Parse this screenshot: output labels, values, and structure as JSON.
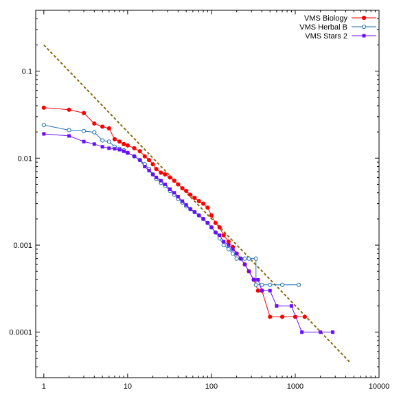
{
  "chart_data": {
    "type": "line",
    "x_scale": "log",
    "y_scale": "log",
    "xlim": [
      0.8,
      10000
    ],
    "ylim": [
      3e-05,
      0.5
    ],
    "x_ticks": [
      {
        "value": 1,
        "label": "1"
      },
      {
        "value": 10,
        "label": "10"
      },
      {
        "value": 100,
        "label": "100"
      },
      {
        "value": 1000,
        "label": "1000"
      },
      {
        "value": 10000,
        "label": "10000"
      }
    ],
    "y_ticks": [
      {
        "value": 0.1,
        "label": "0.1"
      },
      {
        "value": 0.01,
        "label": "0.01"
      },
      {
        "value": 0.001,
        "label": "0.001"
      },
      {
        "value": 0.0001,
        "label": "0.0001"
      }
    ],
    "grid": false,
    "legend_position": "top-right",
    "reference_line": {
      "style": "dashed",
      "color": "#8B6508",
      "x": [
        1,
        4500
      ],
      "y": [
        0.2,
        4.5e-05
      ]
    },
    "series": [
      {
        "name": "VMS Biology",
        "color": "#FF0000",
        "marker": "circle-filled",
        "x": [
          1,
          2,
          3,
          4,
          5,
          6,
          7,
          8,
          9,
          10,
          12,
          14,
          16,
          18,
          20,
          22,
          25,
          28,
          32,
          36,
          40,
          45,
          50,
          56,
          63,
          71,
          80,
          90,
          100,
          112,
          125,
          140,
          160,
          180,
          200,
          224,
          250,
          280,
          320,
          360,
          400,
          500,
          700,
          1000,
          1300
        ],
        "y": [
          0.038,
          0.036,
          0.033,
          0.025,
          0.023,
          0.022,
          0.0165,
          0.0155,
          0.0145,
          0.014,
          0.013,
          0.012,
          0.0105,
          0.0095,
          0.0085,
          0.0075,
          0.0068,
          0.0065,
          0.006,
          0.0055,
          0.005,
          0.0045,
          0.0042,
          0.0038,
          0.0035,
          0.0032,
          0.003,
          0.0027,
          0.0022,
          0.0018,
          0.0016,
          0.0013,
          0.0011,
          0.00095,
          0.0008,
          0.0007,
          0.0006,
          0.0005,
          0.0004,
          0.0003,
          0.0003,
          0.00015,
          0.00015,
          0.00015,
          0.00015
        ]
      },
      {
        "name": "VMS Herbal B",
        "color": "#1F6FB5",
        "marker": "circle-open",
        "x": [
          1,
          2,
          3,
          4,
          5,
          6,
          7,
          8,
          9,
          10,
          12,
          14,
          16,
          18,
          20,
          22,
          25,
          28,
          32,
          36,
          40,
          45,
          50,
          56,
          63,
          71,
          80,
          90,
          100,
          112,
          125,
          140,
          160,
          180,
          200,
          224,
          250,
          280,
          340,
          340,
          400,
          500,
          700,
          1100
        ],
        "y": [
          0.024,
          0.021,
          0.0205,
          0.0198,
          0.016,
          0.0155,
          0.0135,
          0.0128,
          0.0123,
          0.0115,
          0.0105,
          0.0095,
          0.0085,
          0.0075,
          0.0065,
          0.0058,
          0.0052,
          0.0048,
          0.0042,
          0.0038,
          0.0034,
          0.0031,
          0.0028,
          0.0026,
          0.0024,
          0.0022,
          0.002,
          0.0018,
          0.0016,
          0.0014,
          0.0012,
          0.001,
          0.0009,
          0.0008,
          0.0007,
          0.0007,
          0.0007,
          0.0007,
          0.0007,
          0.00035,
          0.00035,
          0.00035,
          0.00035,
          0.00035
        ]
      },
      {
        "name": "VMS Stars 2",
        "color": "#6A0DFF",
        "marker": "square-filled",
        "x": [
          1,
          2,
          3,
          4,
          5,
          6,
          7,
          8,
          9,
          10,
          12,
          14,
          16,
          18,
          20,
          22,
          25,
          28,
          32,
          36,
          40,
          45,
          50,
          56,
          63,
          71,
          80,
          90,
          100,
          112,
          125,
          140,
          160,
          180,
          200,
          224,
          250,
          280,
          320,
          360,
          400,
          500,
          600,
          900,
          1200,
          2000,
          2800
        ],
        "y": [
          0.019,
          0.018,
          0.0155,
          0.0145,
          0.0135,
          0.013,
          0.0128,
          0.0125,
          0.012,
          0.0115,
          0.0105,
          0.0095,
          0.008,
          0.0072,
          0.0065,
          0.006,
          0.0055,
          0.005,
          0.0044,
          0.004,
          0.0036,
          0.0032,
          0.0029,
          0.0026,
          0.0024,
          0.0022,
          0.002,
          0.0018,
          0.0016,
          0.0014,
          0.0013,
          0.0011,
          0.001,
          0.0009,
          0.0008,
          0.0007,
          0.0006,
          0.0005,
          0.0004,
          0.0004,
          0.0003,
          0.0003,
          0.0002,
          0.0002,
          0.0001,
          0.0001,
          0.0001
        ]
      }
    ]
  }
}
